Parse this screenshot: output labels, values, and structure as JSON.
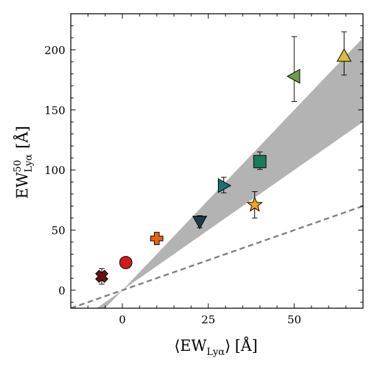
{
  "chart_data": {
    "type": "scatter",
    "title": "",
    "xlabel": {
      "open": "⟨",
      "main": "EW",
      "sub": "Lyα",
      "close": "⟩",
      "unit": "[Å]"
    },
    "ylabel": {
      "main": "EW",
      "sup": "50",
      "sub": "Lyα",
      "unit": "[Å]"
    },
    "xlim": [
      -15,
      70
    ],
    "ylim": [
      -15,
      230
    ],
    "xticks": [
      0,
      25,
      50
    ],
    "xtick_labels": [
      "0",
      "25",
      "50"
    ],
    "yticks": [
      0,
      50,
      100,
      150,
      200
    ],
    "ytick_labels": [
      "0",
      "50",
      "100",
      "150",
      "200"
    ],
    "grid": false,
    "legend": "none",
    "shaded_band": {
      "description_free": true,
      "slope_low": 2.0,
      "slope_high": 3.0,
      "color": "#b3b3b3"
    },
    "dashed_line": {
      "slope": 1.0,
      "color": "#808080"
    },
    "points": [
      {
        "x": -6.0,
        "y": 11.5,
        "err": [
          6.5,
          6.5
        ],
        "marker": "x-cross",
        "color": "#6b0f12"
      },
      {
        "x": 1.0,
        "y": 23.0,
        "err": null,
        "marker": "circle",
        "color": "#d11a1a"
      },
      {
        "x": 10.0,
        "y": 43.0,
        "err": null,
        "marker": "plus",
        "color": "#e8620f"
      },
      {
        "x": 22.5,
        "y": 57.0,
        "err": [
          5.0,
          5.0
        ],
        "marker": "triangle-down",
        "color": "#1f3a4a"
      },
      {
        "x": 29.5,
        "y": 87.0,
        "err": [
          6.0,
          7.0
        ],
        "marker": "triangle-right",
        "color": "#1b6f73"
      },
      {
        "x": 38.5,
        "y": 71.0,
        "err": [
          11.0,
          11.0
        ],
        "marker": "star",
        "color": "#f2a41f"
      },
      {
        "x": 40.0,
        "y": 107.0,
        "err": [
          6.5,
          8.0
        ],
        "marker": "square",
        "color": "#1d7a5b"
      },
      {
        "x": 50.0,
        "y": 178.0,
        "err": [
          21.0,
          33.0
        ],
        "marker": "triangle-left",
        "color": "#6e9e45"
      },
      {
        "x": 64.5,
        "y": 195.0,
        "err": [
          16.0,
          20.0
        ],
        "marker": "triangle-up",
        "color": "#d6bf3c"
      }
    ]
  }
}
